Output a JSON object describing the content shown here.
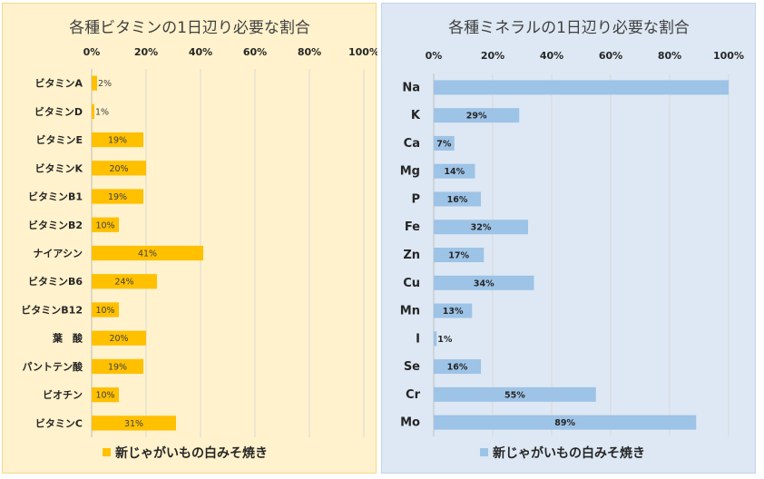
{
  "chart_data": [
    {
      "type": "bar",
      "orientation": "horizontal",
      "title": "各種ビタミンの1日辺り必要な割合",
      "categories": [
        "ビタミンA",
        "ビタミンD",
        "ビタミンE",
        "ビタミンK",
        "ビタミンB1",
        "ビタミンB2",
        "ナイアシン",
        "ビタミンB6",
        "ビタミンB12",
        "葉　酸",
        "パントテン酸",
        "ビオチン",
        "ビタミンC"
      ],
      "series": [
        {
          "name": "新じゃがいもの白みそ焼き",
          "values": [
            2,
            1,
            19,
            20,
            19,
            10,
            41,
            24,
            10,
            20,
            19,
            10,
            31
          ],
          "color": "#ffc000"
        }
      ],
      "xlim": [
        0,
        100
      ],
      "xticks": [
        "0%",
        "20%",
        "40%",
        "60%",
        "80%",
        "100%"
      ],
      "grid": true,
      "legend_position": "bottom",
      "background": "#fff2cc"
    },
    {
      "type": "bar",
      "orientation": "horizontal",
      "title": "各種ミネラルの1日辺り必要な割合",
      "categories": [
        "Na",
        "K",
        "Ca",
        "Mg",
        "P",
        "Fe",
        "Zn",
        "Cu",
        "Mn",
        "I",
        "Se",
        "Cr",
        "Mo"
      ],
      "series": [
        {
          "name": "新じゃがいもの白みそ焼き",
          "values": [
            100,
            29,
            7,
            14,
            16,
            32,
            17,
            34,
            13,
            1,
            16,
            55,
            89
          ],
          "color": "#9dc3e6"
        }
      ],
      "value_labels": [
        "",
        "29%",
        "7%",
        "14%",
        "16%",
        "32%",
        "17%",
        "34%",
        "13%",
        "1%",
        "16%",
        "55%",
        "89%"
      ],
      "xlim": [
        0,
        100
      ],
      "xticks": [
        "0%",
        "20%",
        "40%",
        "60%",
        "80%",
        "100%"
      ],
      "grid": true,
      "legend_position": "bottom",
      "background": "#dde8f4"
    }
  ]
}
